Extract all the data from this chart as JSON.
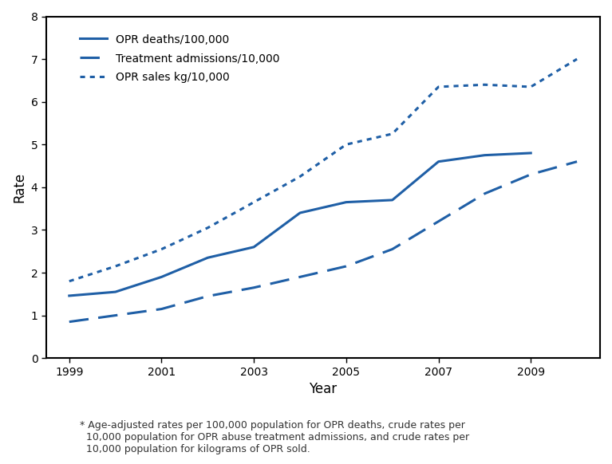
{
  "years": [
    1999,
    2000,
    2001,
    2002,
    2003,
    2004,
    2005,
    2006,
    2007,
    2008,
    2009,
    2010
  ],
  "opr_deaths": [
    1.46,
    1.55,
    1.9,
    2.35,
    2.6,
    3.4,
    3.65,
    3.7,
    4.6,
    4.75,
    4.8,
    null
  ],
  "treatment_admissions": [
    0.85,
    1.0,
    1.15,
    1.45,
    1.65,
    1.9,
    2.15,
    2.55,
    3.2,
    3.85,
    4.3,
    4.6
  ],
  "opr_sales": [
    1.8,
    2.15,
    2.55,
    3.05,
    3.65,
    4.25,
    5.0,
    5.25,
    6.35,
    6.4,
    6.35,
    7.0
  ],
  "line_color": "#1f5fa6",
  "xlim": [
    1998.5,
    2010.5
  ],
  "ylim": [
    0,
    8
  ],
  "yticks": [
    0,
    1,
    2,
    3,
    4,
    5,
    6,
    7,
    8
  ],
  "xticks": [
    1999,
    2001,
    2003,
    2005,
    2007,
    2009
  ],
  "xlabel": "Year",
  "ylabel": "Rate",
  "legend_labels": [
    "OPR deaths/100,000",
    "Treatment admissions/10,000",
    "OPR sales kg/10,000"
  ],
  "footnote": "* Age-adjusted rates per 100,000 population for OPR deaths, crude rates per\n  10,000 population for OPR abuse treatment admissions, and crude rates per\n  10,000 population for kilograms of OPR sold."
}
